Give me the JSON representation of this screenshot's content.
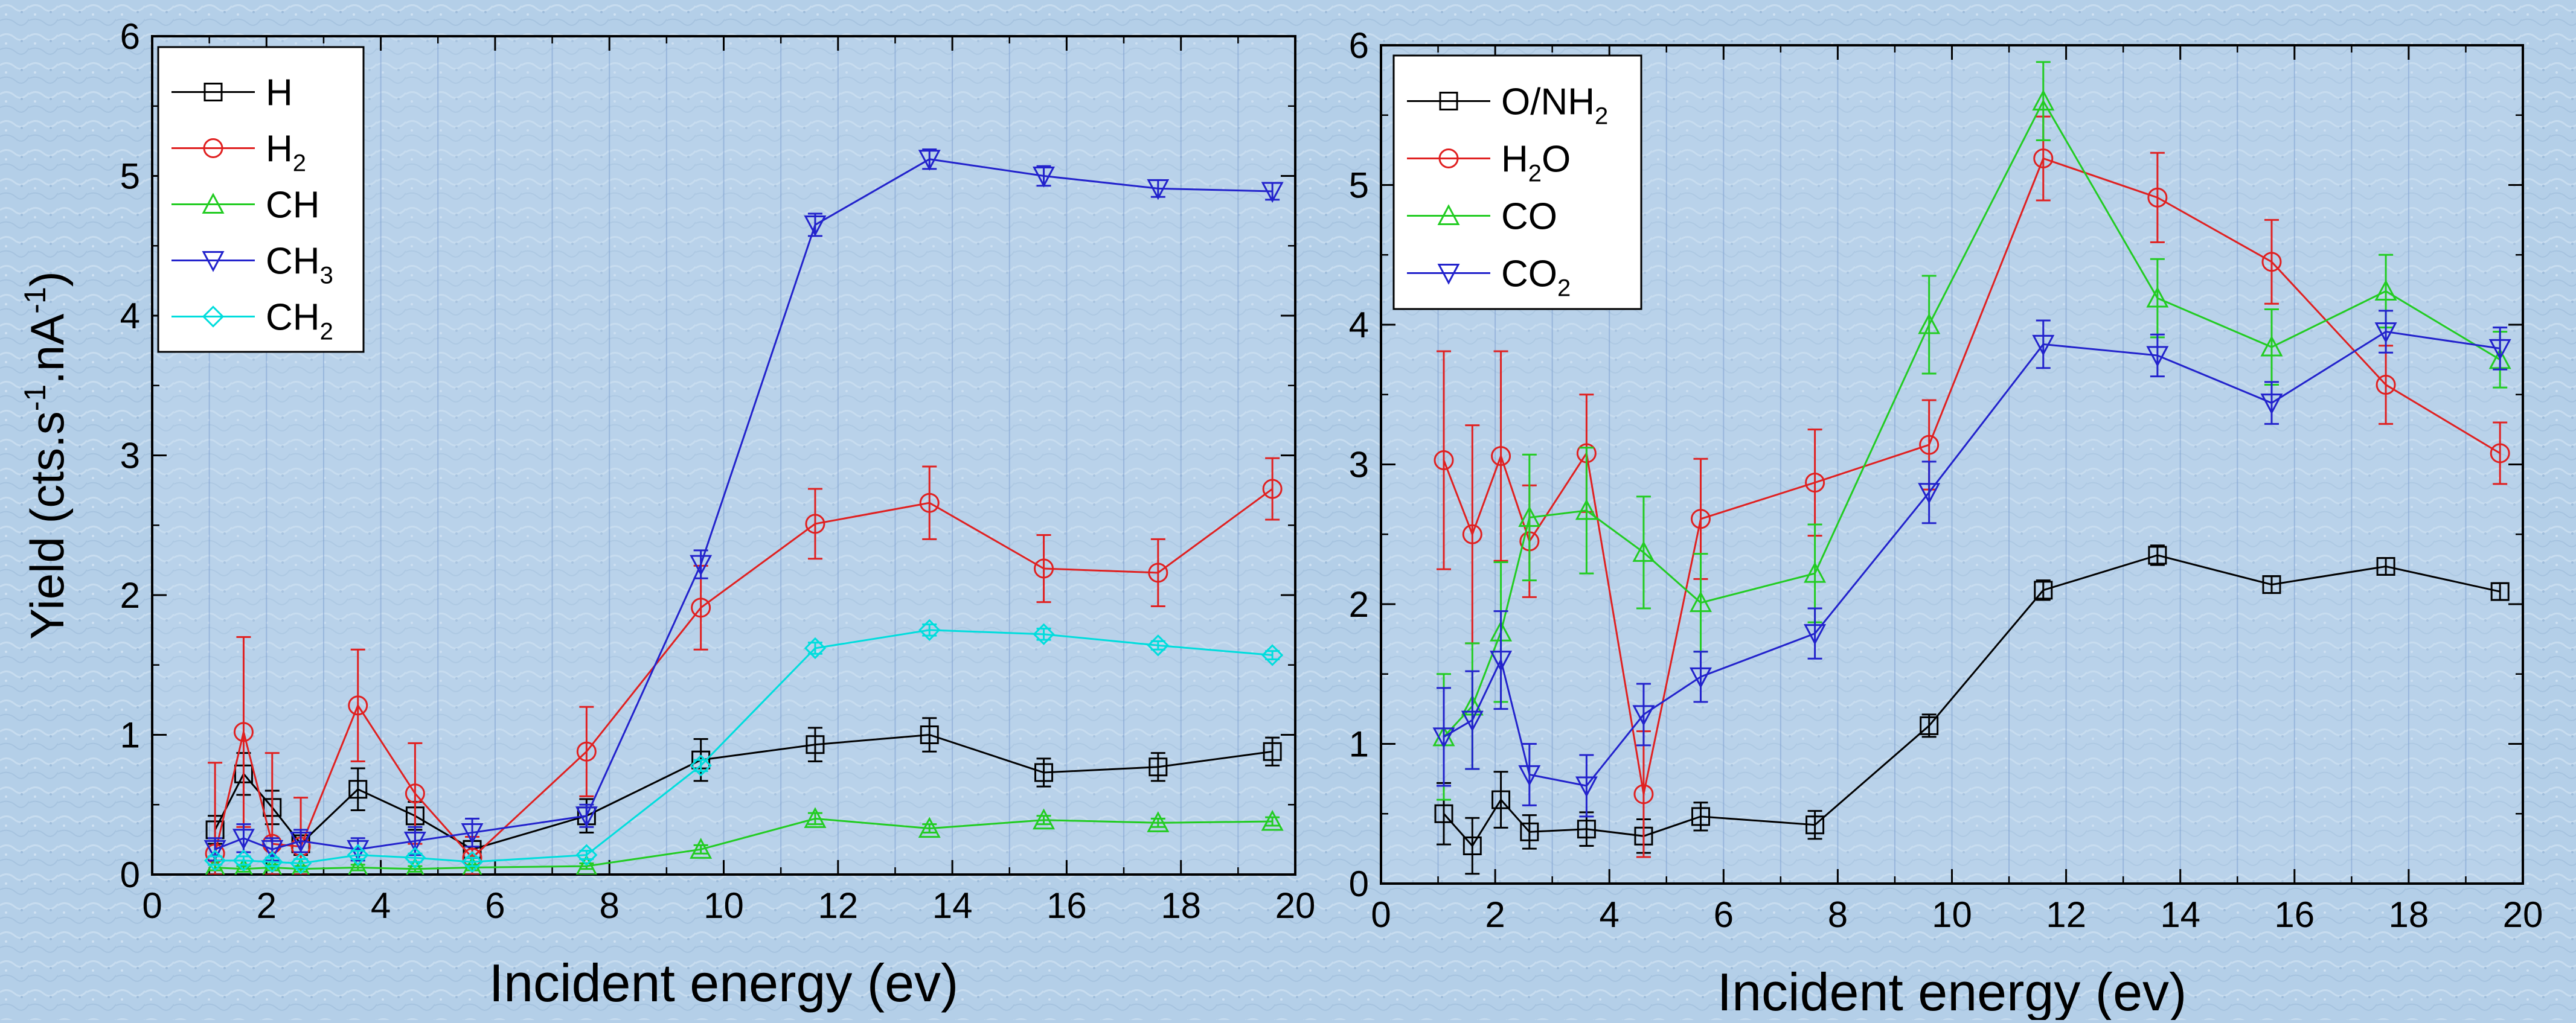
{
  "chart_data": [
    {
      "type": "line",
      "xlabel": "Incident energy (ev)",
      "ylabel": "Yield (cts.s-1.nA-1)",
      "ylabel_parts": [
        "Yield (cts.s",
        "-1",
        ".nA",
        "-1",
        ")"
      ],
      "xlim": [
        0,
        20
      ],
      "ylim": [
        0,
        6
      ],
      "xticks": [
        0,
        2,
        4,
        6,
        8,
        10,
        12,
        14,
        16,
        18,
        20
      ],
      "yticks": [
        0,
        1,
        2,
        3,
        4,
        5,
        6
      ],
      "grid": "vertical, every 1 ev",
      "legend_position": "top-left",
      "series": [
        {
          "name": "H",
          "label_main": "H",
          "label_sub": "",
          "color": "#000000",
          "marker": "square",
          "x": [
            1.1,
            1.6,
            2.1,
            2.6,
            3.6,
            4.6,
            5.6,
            7.6,
            9.6,
            11.6,
            13.6,
            15.6,
            17.6,
            19.6
          ],
          "y": [
            0.32,
            0.72,
            0.48,
            0.22,
            0.61,
            0.42,
            0.18,
            0.42,
            0.82,
            0.93,
            1.0,
            0.73,
            0.77,
            0.88
          ],
          "err": [
            0.1,
            0.15,
            0.12,
            0.08,
            0.15,
            0.1,
            0.06,
            0.12,
            0.15,
            0.12,
            0.12,
            0.1,
            0.1,
            0.1
          ]
        },
        {
          "name": "H2",
          "label_main": "H",
          "label_sub": "2",
          "color": "#e02020",
          "marker": "circle",
          "x": [
            1.1,
            1.6,
            2.1,
            2.6,
            3.6,
            4.6,
            5.6,
            7.6,
            9.6,
            11.6,
            13.6,
            15.6,
            17.6,
            19.6
          ],
          "y": [
            0.15,
            1.02,
            0.22,
            0.2,
            1.21,
            0.58,
            0.12,
            0.88,
            1.91,
            2.51,
            2.66,
            2.19,
            2.16,
            2.76
          ],
          "err": [
            0.65,
            0.68,
            0.65,
            0.35,
            0.4,
            0.36,
            0.15,
            0.32,
            0.3,
            0.25,
            0.26,
            0.24,
            0.24,
            0.22
          ]
        },
        {
          "name": "CH",
          "label_main": "CH",
          "label_sub": "",
          "color": "#22cc22",
          "marker": "triangle-up",
          "x": [
            1.1,
            1.6,
            2.1,
            2.6,
            3.6,
            4.6,
            5.6,
            7.6,
            9.6,
            11.6,
            13.6,
            15.6,
            17.6,
            19.6
          ],
          "y": [
            0.05,
            0.04,
            0.05,
            0.04,
            0.05,
            0.04,
            0.05,
            0.06,
            0.18,
            0.4,
            0.33,
            0.39,
            0.37,
            0.38
          ],
          "err": [
            0.02,
            0.02,
            0.02,
            0.02,
            0.02,
            0.02,
            0.02,
            0.02,
            0.03,
            0.04,
            0.03,
            0.03,
            0.03,
            0.03
          ]
        },
        {
          "name": "CH3",
          "label_main": "CH",
          "label_sub": "3",
          "color": "#2222cc",
          "marker": "triangle-down",
          "x": [
            1.1,
            1.6,
            2.1,
            2.6,
            3.6,
            4.6,
            5.6,
            7.6,
            9.6,
            11.6,
            13.6,
            15.6,
            17.6,
            19.6
          ],
          "y": [
            0.18,
            0.26,
            0.18,
            0.24,
            0.18,
            0.24,
            0.3,
            0.42,
            2.22,
            4.65,
            5.12,
            5.0,
            4.91,
            4.89
          ],
          "err": [
            0.08,
            0.1,
            0.08,
            0.08,
            0.08,
            0.1,
            0.1,
            0.08,
            0.1,
            0.08,
            0.07,
            0.07,
            0.06,
            0.06
          ]
        },
        {
          "name": "CH2",
          "label_main": "CH",
          "label_sub": "2",
          "color": "#00dddd",
          "marker": "diamond",
          "x": [
            1.1,
            1.6,
            2.1,
            2.6,
            3.6,
            4.6,
            5.6,
            7.6,
            9.6,
            11.6,
            13.6,
            15.6,
            17.6,
            19.6
          ],
          "y": [
            0.1,
            0.1,
            0.09,
            0.08,
            0.14,
            0.12,
            0.09,
            0.14,
            0.78,
            1.62,
            1.75,
            1.72,
            1.64,
            1.57
          ],
          "err": [
            0.03,
            0.03,
            0.03,
            0.03,
            0.03,
            0.03,
            0.03,
            0.03,
            0.04,
            0.04,
            0.04,
            0.04,
            0.03,
            0.03
          ]
        }
      ]
    },
    {
      "type": "line",
      "xlabel": "Incident energy (ev)",
      "ylabel": "",
      "xlim": [
        0,
        20
      ],
      "ylim": [
        0,
        6
      ],
      "xticks": [
        0,
        2,
        4,
        6,
        8,
        10,
        12,
        14,
        16,
        18,
        20
      ],
      "yticks": [
        0,
        1,
        2,
        3,
        4,
        5,
        6
      ],
      "grid": "vertical, every 1 ev",
      "legend_position": "top-left",
      "series": [
        {
          "name": "O/NH2",
          "label_main": "O/NH",
          "label_sub": "2",
          "label_tail": "",
          "color": "#000000",
          "marker": "square",
          "x": [
            1.1,
            1.6,
            2.1,
            2.6,
            3.6,
            4.6,
            5.6,
            7.6,
            9.6,
            11.6,
            13.6,
            15.6,
            17.6,
            19.6
          ],
          "y": [
            0.5,
            0.27,
            0.6,
            0.37,
            0.39,
            0.34,
            0.48,
            0.42,
            1.13,
            2.1,
            2.35,
            2.14,
            2.27,
            2.09
          ],
          "err": [
            0.22,
            0.2,
            0.2,
            0.12,
            0.12,
            0.12,
            0.1,
            0.1,
            0.08,
            0.07,
            0.07,
            0.06,
            0.06,
            0.06
          ]
        },
        {
          "name": "H2O",
          "label_main": "H",
          "label_sub": "2",
          "label_tail": "O",
          "color": "#e02020",
          "marker": "circle",
          "x": [
            1.1,
            1.6,
            2.1,
            2.6,
            3.6,
            4.6,
            5.6,
            7.6,
            9.6,
            11.6,
            13.6,
            15.6,
            17.6,
            19.6
          ],
          "y": [
            3.03,
            2.5,
            3.06,
            2.45,
            3.08,
            0.64,
            2.61,
            2.87,
            3.14,
            5.19,
            4.91,
            4.45,
            3.57,
            3.08
          ],
          "err": [
            0.78,
            0.78,
            0.75,
            0.4,
            0.42,
            0.45,
            0.43,
            0.38,
            0.32,
            0.3,
            0.32,
            0.3,
            0.28,
            0.22
          ]
        },
        {
          "name": "CO",
          "label_main": "CO",
          "label_sub": "",
          "label_tail": "",
          "color": "#22cc22",
          "marker": "triangle-up",
          "x": [
            1.1,
            1.6,
            2.1,
            2.6,
            3.6,
            4.6,
            5.6,
            7.6,
            9.6,
            11.6,
            13.6,
            15.6,
            17.6,
            19.6
          ],
          "y": [
            1.05,
            1.27,
            1.8,
            2.62,
            2.67,
            2.37,
            2.01,
            2.22,
            4.0,
            5.6,
            4.19,
            3.84,
            4.24,
            3.75
          ],
          "err": [
            0.45,
            0.45,
            0.5,
            0.45,
            0.45,
            0.4,
            0.35,
            0.35,
            0.35,
            0.28,
            0.28,
            0.27,
            0.26,
            0.2
          ]
        },
        {
          "name": "CO2",
          "label_main": "CO",
          "label_sub": "2",
          "label_tail": "",
          "color": "#2222cc",
          "marker": "triangle-down",
          "x": [
            1.1,
            1.6,
            2.1,
            2.6,
            3.6,
            4.6,
            5.6,
            7.6,
            9.6,
            11.6,
            13.6,
            15.6,
            17.6,
            19.6
          ],
          "y": [
            1.05,
            1.17,
            1.6,
            0.78,
            0.7,
            1.21,
            1.48,
            1.79,
            2.8,
            3.86,
            3.78,
            3.44,
            3.95,
            3.83
          ],
          "err": [
            0.35,
            0.35,
            0.35,
            0.22,
            0.22,
            0.22,
            0.18,
            0.18,
            0.22,
            0.17,
            0.15,
            0.15,
            0.15,
            0.15
          ]
        }
      ]
    }
  ]
}
